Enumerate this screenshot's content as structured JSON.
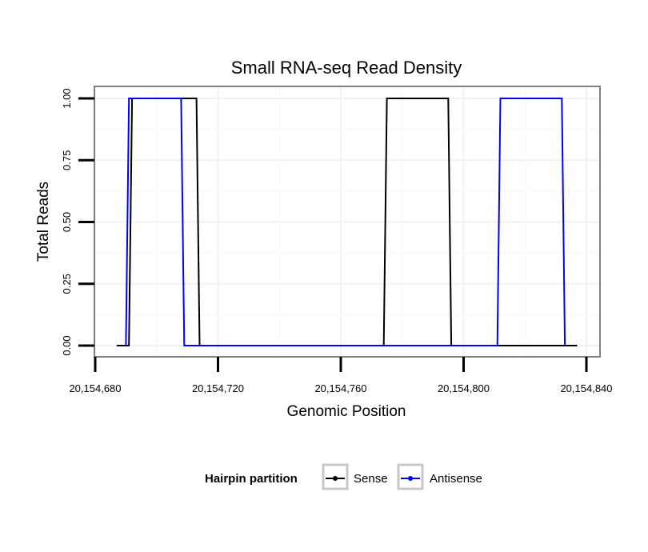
{
  "chart_data": {
    "type": "line",
    "title": "Small RNA-seq Read Density",
    "xlabel": "Genomic Position",
    "ylabel": "Total Reads",
    "xlim": [
      20154680,
      20154840
    ],
    "ylim": [
      0,
      1
    ],
    "x_ticks": [
      20154680,
      20154720,
      20154760,
      20154800,
      20154840
    ],
    "x_tick_labels": [
      "20,154,680",
      "20,154,720",
      "20,154,760",
      "20,154,800",
      "20,154,840"
    ],
    "y_ticks": [
      0,
      0.25,
      0.5,
      0.75,
      1
    ],
    "y_tick_labels": [
      "0.00",
      "0.25",
      "0.50",
      "0.75",
      "1.00"
    ],
    "grid": true,
    "legend": {
      "title": "Hairpin partition",
      "position": "bottom",
      "entries": [
        "Sense",
        "Antisense"
      ]
    },
    "series": [
      {
        "name": "Sense",
        "color": "#000000",
        "x": [
          20154687,
          20154691,
          20154692,
          20154713,
          20154714,
          20154774,
          20154775,
          20154795,
          20154796,
          20154837
        ],
        "y": [
          0,
          0,
          1,
          1,
          0,
          0,
          1,
          1,
          0,
          0
        ]
      },
      {
        "name": "Antisense",
        "color": "#0000ff",
        "x": [
          20154690,
          20154691,
          20154708,
          20154709,
          20154811,
          20154812,
          20154832,
          20154833
        ],
        "y": [
          0,
          1,
          1,
          0,
          0,
          1,
          1,
          0
        ]
      }
    ]
  }
}
